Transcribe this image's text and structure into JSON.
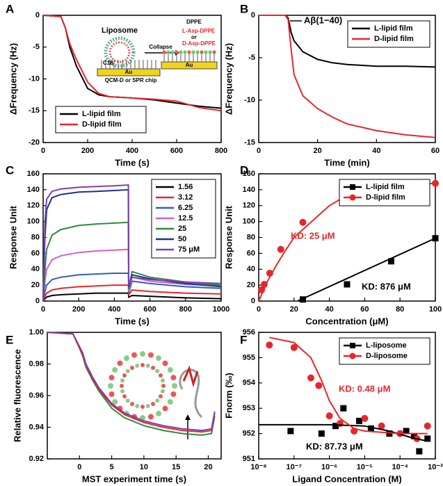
{
  "chart_data": [
    {
      "type": "line",
      "panel_label": "A",
      "xlabel": "Time (s)",
      "ylabel": "ΔFrequency (Hz)",
      "xlim": [
        0,
        800
      ],
      "xticks": [
        0,
        200,
        400,
        600,
        800
      ],
      "ylim": [
        -20,
        0
      ],
      "yticks": [
        -20,
        -15,
        -10,
        -5,
        0
      ],
      "legend": "lower left",
      "series": [
        {
          "name": "L-lipid film",
          "color": "#000000",
          "marker": "none",
          "x": [
            0,
            80,
            100,
            120,
            150,
            200,
            250,
            300,
            400,
            500,
            600,
            700,
            800
          ],
          "values": [
            0,
            -0.2,
            -2,
            -5,
            -8,
            -11.5,
            -12.5,
            -12.8,
            -13,
            -13.3,
            -13.8,
            -14.3,
            -14.6
          ]
        },
        {
          "name": "D-lipid film",
          "color": "#e8262a",
          "marker": "none",
          "x": [
            0,
            80,
            100,
            120,
            150,
            200,
            250,
            300,
            400,
            500,
            600,
            700,
            800
          ],
          "values": [
            0,
            -0.2,
            -2,
            -4.5,
            -7,
            -10.5,
            -12.3,
            -12.8,
            -13,
            -13.2,
            -13.5,
            -14.5,
            -15
          ]
        }
      ],
      "annotations": [
        {
          "text": "Liposome"
        },
        {
          "text": "Collapse"
        },
        {
          "text": "DPPE"
        },
        {
          "text": "L-Asp-DPPE",
          "color": "#e8262a"
        },
        {
          "text": "or"
        },
        {
          "text": "D-Asp-DPPE",
          "color": "#e8262a"
        },
        {
          "text": "C18"
        },
        {
          "text": "Au"
        },
        {
          "text": "Au"
        },
        {
          "text": "QCM-D or SPR chip"
        }
      ]
    },
    {
      "type": "line",
      "panel_label": "B",
      "xlabel": "Time (min)",
      "ylabel": "ΔFrequency (Hz)",
      "xlim": [
        0,
        60
      ],
      "xticks": [
        0,
        20,
        40,
        60
      ],
      "ylim": [
        -15,
        0
      ],
      "yticks": [
        -15,
        -10,
        -5,
        0
      ],
      "legend": "upper right",
      "series": [
        {
          "name": "L-lipid film",
          "color": "#000000",
          "marker": "none",
          "x": [
            0,
            5,
            9,
            10,
            11,
            12,
            15,
            20,
            25,
            30,
            40,
            50,
            60
          ],
          "values": [
            0,
            0,
            0,
            -0.3,
            -2,
            -3,
            -4.3,
            -5.2,
            -5.6,
            -5.8,
            -6,
            -6,
            -6.1
          ]
        },
        {
          "name": "D-lipid film",
          "color": "#e8262a",
          "marker": "none",
          "x": [
            0,
            5,
            9,
            10,
            11,
            12,
            15,
            20,
            25,
            30,
            40,
            50,
            60
          ],
          "values": [
            0,
            0,
            0,
            -0.5,
            -4,
            -7,
            -9.5,
            -11,
            -12,
            -12.8,
            -13.6,
            -14.1,
            -14.4
          ]
        }
      ],
      "annotations": [
        {
          "text": "Aβ(1−40)"
        }
      ]
    },
    {
      "type": "line",
      "panel_label": "C",
      "xlabel": "Time (s)",
      "ylabel": "Response Unit",
      "xlim": [
        0,
        1000
      ],
      "xticks": [
        0,
        200,
        400,
        600,
        800,
        1000
      ],
      "ylim": [
        0,
        160
      ],
      "yticks": [
        0,
        20,
        40,
        60,
        80,
        100,
        120,
        140,
        160
      ],
      "legend": "upper right",
      "series": [
        {
          "name": "1.56",
          "color": "#000000",
          "marker": "none",
          "x": [
            0,
            10,
            20,
            50,
            100,
            200,
            300,
            400,
            479,
            481,
            500,
            600,
            800,
            1000
          ],
          "values": [
            0,
            3,
            5,
            7,
            8,
            9,
            10,
            10,
            10,
            5,
            7,
            6,
            4,
            3
          ]
        },
        {
          "name": "3.12",
          "color": "#e8262a",
          "marker": "none",
          "x": [
            0,
            10,
            20,
            50,
            100,
            200,
            300,
            400,
            479,
            481,
            500,
            600,
            800,
            1000
          ],
          "values": [
            0,
            6,
            10,
            14,
            16,
            18,
            19,
            20,
            20,
            8,
            14,
            12,
            10,
            9
          ]
        },
        {
          "name": "6.25",
          "color": "#2f5fc4",
          "marker": "none",
          "x": [
            0,
            10,
            20,
            50,
            100,
            200,
            300,
            400,
            479,
            481,
            500,
            600,
            800,
            1000
          ],
          "values": [
            0,
            12,
            20,
            27,
            30,
            33,
            34,
            35,
            35,
            10,
            25,
            22,
            18,
            16
          ]
        },
        {
          "name": "12.5",
          "color": "#d35fc8",
          "marker": "none",
          "x": [
            0,
            10,
            20,
            50,
            100,
            200,
            300,
            400,
            479,
            481,
            500,
            600,
            800,
            1000
          ],
          "values": [
            0,
            25,
            40,
            52,
            57,
            61,
            63,
            64,
            65,
            12,
            30,
            25,
            21,
            19
          ]
        },
        {
          "name": "25",
          "color": "#2e8b3a",
          "marker": "none",
          "x": [
            0,
            10,
            20,
            50,
            100,
            200,
            300,
            400,
            479,
            481,
            500,
            600,
            800,
            1000
          ],
          "values": [
            0,
            40,
            65,
            83,
            90,
            95,
            97,
            98,
            99,
            15,
            37,
            30,
            24,
            20
          ]
        },
        {
          "name": "50",
          "color": "#1f2f8f",
          "marker": "none",
          "x": [
            0,
            10,
            20,
            50,
            100,
            200,
            300,
            400,
            479,
            481,
            500,
            600,
            800,
            1000
          ],
          "values": [
            0,
            80,
            115,
            130,
            134,
            137,
            138,
            139,
            140,
            18,
            33,
            28,
            22,
            18
          ]
        },
        {
          "name": "75 μM",
          "color": "#7b3fb5",
          "marker": "none",
          "x": [
            0,
            10,
            20,
            50,
            100,
            200,
            300,
            400,
            479,
            481,
            500,
            600,
            800,
            1000
          ],
          "values": [
            0,
            100,
            128,
            138,
            141,
            143,
            144,
            145,
            146,
            20,
            30,
            27,
            24,
            22
          ]
        }
      ],
      "annotations": []
    },
    {
      "type": "scatter",
      "panel_label": "D",
      "xlabel": "Concentration (μM)",
      "ylabel": "Response Unit",
      "xlim": [
        0,
        100
      ],
      "xticks": [
        0,
        20,
        40,
        60,
        80,
        100
      ],
      "ylim": [
        0,
        160
      ],
      "yticks": [
        0,
        20,
        40,
        60,
        80,
        100,
        120,
        140,
        160
      ],
      "legend": "upper right",
      "series": [
        {
          "name": "L-lipid film",
          "color": "#000000",
          "marker": "square",
          "x": [
            25,
            50,
            75,
            100
          ],
          "values": [
            2,
            21,
            50,
            79
          ]
        },
        {
          "name": "D-lipid film",
          "color": "#e8262a",
          "marker": "circle",
          "x": [
            1.56,
            3.12,
            6.25,
            12.5,
            25,
            50,
            75,
            100
          ],
          "values": [
            14,
            21,
            35,
            65,
            99,
            139,
            146,
            148
          ]
        },
        {
          "color": "#000000",
          "marker": "none",
          "x": [
            22,
            100
          ],
          "values": [
            0,
            79
          ]
        },
        {
          "color": "#e8262a",
          "marker": "none",
          "x": [
            0,
            5,
            10,
            15,
            20,
            30,
            40,
            50,
            60,
            80,
            100
          ],
          "values": [
            0,
            25,
            45,
            63,
            80,
            100,
            120,
            133,
            140,
            146,
            148
          ]
        }
      ],
      "annotations": [
        {
          "text": "KD: 25 μM",
          "color": "#e8262a"
        },
        {
          "text": "KD: 876 μM",
          "color": "#000000"
        }
      ]
    },
    {
      "type": "line",
      "panel_label": "E",
      "xlabel": "MST experiment time (s)",
      "ylabel": "Relative fluorescence",
      "xlim": [
        -5,
        22
      ],
      "xticks": [
        0,
        5,
        10,
        15,
        20
      ],
      "ylim": [
        0.92,
        1.0
      ],
      "yticks": [
        0.92,
        0.94,
        0.96,
        0.98,
        {
          "value": 1.0,
          "label": "1.00"
        }
      ],
      "legend": "none",
      "series": [
        {
          "color": "#2e8b3a",
          "marker": "none",
          "x": [
            -5,
            -1,
            0,
            0.5,
            1,
            2,
            3,
            5,
            7,
            10,
            13,
            16,
            19,
            20.5,
            21
          ],
          "values": [
            1.0,
            0.999,
            0.99,
            0.985,
            0.978,
            0.97,
            0.963,
            0.952,
            0.946,
            0.941,
            0.938,
            0.936,
            0.935,
            0.936,
            0.947
          ]
        },
        {
          "color": "#e8262a",
          "marker": "none",
          "x": [
            -5,
            -1,
            0,
            0.5,
            1,
            2,
            3,
            5,
            7,
            10,
            13,
            16,
            19,
            20.5,
            21
          ],
          "values": [
            1.0,
            0.999,
            0.99,
            0.986,
            0.979,
            0.971,
            0.964,
            0.954,
            0.948,
            0.943,
            0.94,
            0.938,
            0.937,
            0.938,
            0.949
          ]
        },
        {
          "color": "#7b3fb5",
          "marker": "none",
          "x": [
            -5,
            -1,
            0,
            0.5,
            1,
            2,
            3,
            5,
            7,
            10,
            13,
            16,
            19,
            20.5,
            21
          ],
          "values": [
            1.0,
            0.999,
            0.991,
            0.987,
            0.98,
            0.972,
            0.965,
            0.955,
            0.949,
            0.944,
            0.941,
            0.939,
            0.938,
            0.939,
            0.95
          ]
        }
      ],
      "annotations": []
    },
    {
      "type": "scatter",
      "panel_label": "F",
      "xlabel": "Ligand Concentration (M)",
      "ylabel": "Fnorm (‰)",
      "xscale": "log",
      "xlim": [
        1e-08,
        0.001
      ],
      "xticks": [
        {
          "value": 1e-08,
          "label": "10⁻⁸"
        },
        {
          "value": 1e-07,
          "label": "10⁻⁷"
        },
        {
          "value": 1e-06,
          "label": "10⁻⁶"
        },
        {
          "value": 1e-05,
          "label": "10⁻⁵"
        },
        {
          "value": 0.0001,
          "label": "10⁻⁴"
        },
        {
          "value": 0.001,
          "label": "10⁻³"
        }
      ],
      "ylim": [
        951,
        956
      ],
      "yticks": [
        951,
        952,
        953,
        954,
        955,
        956
      ],
      "legend": "upper right",
      "series": [
        {
          "name": "L-liposome",
          "color": "#000000",
          "marker": "square",
          "x": [
            8e-08,
            6e-07,
            1.5e-06,
            2.5e-06,
            7e-06,
            1.5e-05,
            5e-05,
            0.00015,
            0.00025,
            0.00035,
            0.0006
          ],
          "values": [
            952.1,
            952.0,
            952.3,
            953.0,
            952.5,
            952.2,
            952.0,
            952.1,
            951.9,
            951.3,
            951.8
          ]
        },
        {
          "name": "D-liposome",
          "color": "#e8262a",
          "marker": "circle",
          "x": [
            2e-08,
            1e-07,
            3e-07,
            5e-07,
            1e-06,
            2e-06,
            5e-06,
            1e-05,
            3e-05,
            0.0001,
            0.0003,
            0.0006
          ],
          "values": [
            955.5,
            955.4,
            954.2,
            953.9,
            952.7,
            952.4,
            952.1,
            952.6,
            952.3,
            952.0,
            951.8,
            952.3
          ]
        },
        {
          "color": "#000000",
          "marker": "none",
          "x": [
            1e-08,
            1e-06,
            1e-05,
            5e-05,
            0.0002,
            0.0006
          ],
          "values": [
            952.35,
            952.35,
            952.3,
            952.1,
            951.85,
            951.7
          ]
        },
        {
          "color": "#e8262a",
          "marker": "none",
          "x": [
            2e-08,
            1e-07,
            3e-07,
            6e-07,
            1e-06,
            2e-06,
            5e-06,
            1e-05,
            0.0001,
            0.0006
          ],
          "values": [
            955.8,
            955.6,
            955.0,
            954.1,
            953.3,
            952.6,
            952.2,
            952.1,
            952.0,
            952.0
          ]
        }
      ],
      "annotations": [
        {
          "text": "KD: 0.48 μM",
          "color": "#e8262a"
        },
        {
          "text": "KD: 87.73 μM",
          "color": "#000000"
        }
      ]
    }
  ]
}
